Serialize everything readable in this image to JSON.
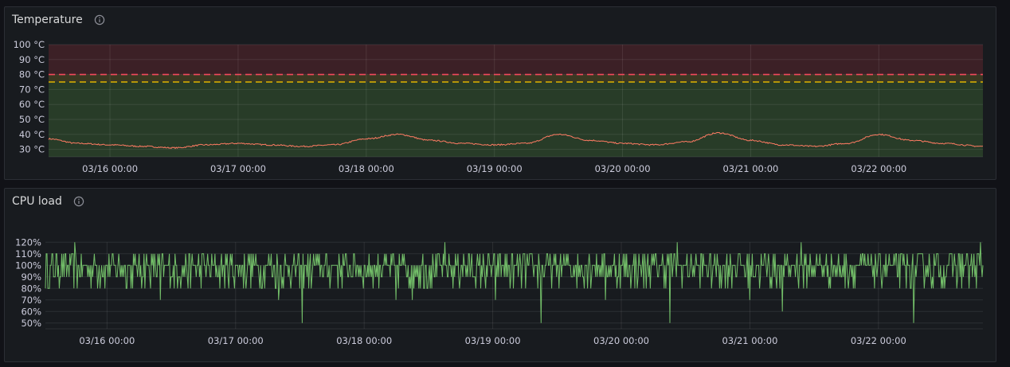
{
  "panels": [
    {
      "title": "Temperature",
      "info_icon": "info-circle-icon",
      "chart_data": {
        "type": "line",
        "title": "Temperature",
        "ylim": [
          25,
          100
        ],
        "yticks": [
          30,
          40,
          50,
          60,
          70,
          80,
          90,
          100
        ],
        "ytick_labels": [
          "30 °C",
          "40 °C",
          "50 °C",
          "60 °C",
          "70 °C",
          "80 °C",
          "90 °C",
          "100 °C"
        ],
        "x_range": [
          "2026-03-15T12:30",
          "2026-03-22T19:30"
        ],
        "xtick_labels": [
          "03/16 00:00",
          "03/17 00:00",
          "03/18 00:00",
          "03/19 00:00",
          "03/20 00:00",
          "03/21 00:00",
          "03/22 00:00"
        ],
        "grid": true,
        "thresholds": [
          {
            "value": 75,
            "color": "#e0b400",
            "style": "dashed"
          },
          {
            "value": 80,
            "color": "#f2495c",
            "style": "dashed"
          }
        ],
        "threshold_regions": [
          {
            "from": 25,
            "to": 75,
            "color": "#2f4a2c"
          },
          {
            "from": 75,
            "to": 80,
            "color": "#4a4424"
          },
          {
            "from": 80,
            "to": 100,
            "color": "#4b2329"
          }
        ],
        "series": [
          {
            "color": "#ff7b63",
            "x": [
              "03/15 12:30",
              "03/15 18:00",
              "03/16 00:00",
              "03/16 06:00",
              "03/16 12:00",
              "03/16 18:00",
              "03/17 00:00",
              "03/17 06:00",
              "03/17 12:00",
              "03/17 18:00",
              "03/18 00:00",
              "03/18 06:00",
              "03/18 12:00",
              "03/18 18:00",
              "03/19 00:00",
              "03/19 06:00",
              "03/19 12:00",
              "03/19 18:00",
              "03/20 00:00",
              "03/20 06:00",
              "03/20 12:00",
              "03/20 18:00",
              "03/21 00:00",
              "03/21 06:00",
              "03/21 12:00",
              "03/21 18:00",
              "03/22 00:00",
              "03/22 06:00",
              "03/22 12:00",
              "03/22 19:30"
            ],
            "values": [
              37,
              34,
              33,
              32,
              31,
              33,
              34,
              33,
              32,
              33,
              37,
              40,
              36,
              34,
              33,
              34,
              40,
              36,
              34,
              33,
              35,
              41,
              36,
              33,
              32,
              34,
              40,
              36,
              34,
              32
            ]
          }
        ]
      }
    },
    {
      "title": "CPU load",
      "info_icon": "info-circle-icon",
      "chart_data": {
        "type": "line",
        "title": "CPU load",
        "ylim": [
          45,
          125
        ],
        "yticks": [
          50,
          60,
          70,
          80,
          90,
          100,
          110,
          120
        ],
        "ytick_labels": [
          "50%",
          "60%",
          "70%",
          "80%",
          "90%",
          "100%",
          "110%",
          "120%"
        ],
        "x_range": [
          "2026-03-15T12:30",
          "2026-03-22T19:30"
        ],
        "xtick_labels": [
          "03/16 00:00",
          "03/17 00:00",
          "03/18 00:00",
          "03/19 00:00",
          "03/20 00:00",
          "03/21 00:00",
          "03/22 00:00"
        ],
        "grid": true,
        "series": [
          {
            "color": "#73bf69",
            "values_summary": "noisy signal fluctuating between 80% and 110% around 100%",
            "typical_range": [
              80,
              110
            ],
            "spikes": [
              {
                "x": "03/15 18:00",
                "value": 120
              },
              {
                "x": "03/16 10:00",
                "value": 70
              },
              {
                "x": "03/17 08:00",
                "value": 70
              },
              {
                "x": "03/17 12:30",
                "value": 50
              },
              {
                "x": "03/18 06:00",
                "value": 70
              },
              {
                "x": "03/18 09:00",
                "value": 70
              },
              {
                "x": "03/18 15:00",
                "value": 120
              },
              {
                "x": "03/19 00:30",
                "value": 70
              },
              {
                "x": "03/19 09:00",
                "value": 50
              },
              {
                "x": "03/19 21:00",
                "value": 70
              },
              {
                "x": "03/20 09:00",
                "value": 50
              },
              {
                "x": "03/20 10:30",
                "value": 120
              },
              {
                "x": "03/21 00:00",
                "value": 70
              },
              {
                "x": "03/21 06:00",
                "value": 60
              },
              {
                "x": "03/21 09:30",
                "value": 120
              },
              {
                "x": "03/22 06:30",
                "value": 50
              },
              {
                "x": "03/22 19:00",
                "value": 120
              }
            ]
          }
        ]
      }
    }
  ]
}
